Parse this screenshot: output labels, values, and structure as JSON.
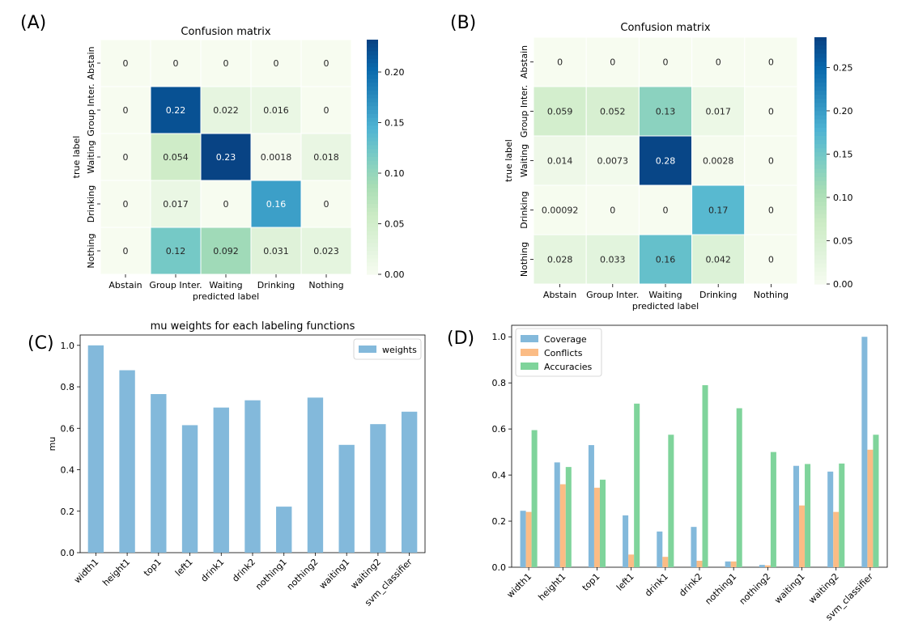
{
  "panels": {
    "A": {
      "label": "(A)"
    },
    "B": {
      "label": "(B)"
    },
    "C": {
      "label": "(C)"
    },
    "D": {
      "label": "(D)"
    }
  },
  "colors": {
    "weights": "#83b9db",
    "coverage": "#83b9db",
    "conflicts": "#fbbc85",
    "accuracies": "#7fd49b",
    "colormap_stops": [
      "#f7fcf0",
      "#e0f3db",
      "#ccebc5",
      "#a8ddb5",
      "#7bccc4",
      "#4eb3d3",
      "#2b8cbe",
      "#0868ac",
      "#084081"
    ]
  },
  "chart_data": [
    {
      "id": "A",
      "type": "heatmap",
      "title": "Confusion matrix",
      "xlabel": "predicted label",
      "ylabel": "true label",
      "x_categories": [
        "Abstain",
        "Group Inter.",
        "Waiting",
        "Drinking",
        "Nothing"
      ],
      "y_categories": [
        "Abstain",
        "Group Inter.",
        "Waiting",
        "Drinking",
        "Nothing"
      ],
      "values": [
        [
          0,
          0,
          0,
          0,
          0
        ],
        [
          0,
          0.22,
          0.022,
          0.016,
          0
        ],
        [
          0,
          0.054,
          0.23,
          0.0018,
          0.018
        ],
        [
          0,
          0.017,
          0,
          0.16,
          0
        ],
        [
          0,
          0.12,
          0.092,
          0.031,
          0.023
        ]
      ],
      "cell_labels": [
        [
          "0",
          "0",
          "0",
          "0",
          "0"
        ],
        [
          "0",
          "0.22",
          "0.022",
          "0.016",
          "0"
        ],
        [
          "0",
          "0.054",
          "0.23",
          "0.0018",
          "0.018"
        ],
        [
          "0",
          "0.017",
          "0",
          "0.16",
          "0"
        ],
        [
          "0",
          "0.12",
          "0.092",
          "0.031",
          "0.023"
        ]
      ],
      "vmin": 0,
      "vmax": 0.232,
      "colorbar_ticks": [
        0.0,
        0.05,
        0.1,
        0.15,
        0.2
      ],
      "colorbar_tick_labels": [
        "0.00",
        "0.05",
        "0.10",
        "0.15",
        "0.20"
      ]
    },
    {
      "id": "B",
      "type": "heatmap",
      "title": "Confusion matrix",
      "xlabel": "predicted label",
      "ylabel": "true label",
      "x_categories": [
        "Abstain",
        "Group Inter.",
        "Waiting",
        "Drinking",
        "Nothing"
      ],
      "y_categories": [
        "Abstain",
        "Group Inter.",
        "Waiting",
        "Drinking",
        "Nothing"
      ],
      "values": [
        [
          0,
          0,
          0,
          0,
          0
        ],
        [
          0.059,
          0.052,
          0.13,
          0.017,
          0
        ],
        [
          0.014,
          0.0073,
          0.28,
          0.0028,
          0
        ],
        [
          0.00092,
          0,
          0,
          0.17,
          0
        ],
        [
          0.028,
          0.033,
          0.16,
          0.042,
          0
        ]
      ],
      "cell_labels": [
        [
          "0",
          "0",
          "0",
          "0",
          "0"
        ],
        [
          "0.059",
          "0.052",
          "0.13",
          "0.017",
          "0"
        ],
        [
          "0.014",
          "0.0073",
          "0.28",
          "0.0028",
          "0"
        ],
        [
          "0.00092",
          "0",
          "0",
          "0.17",
          "0"
        ],
        [
          "0.028",
          "0.033",
          "0.16",
          "0.042",
          "0"
        ]
      ],
      "vmin": 0,
      "vmax": 0.285,
      "colorbar_ticks": [
        0.0,
        0.05,
        0.1,
        0.15,
        0.2,
        0.25
      ],
      "colorbar_tick_labels": [
        "0.00",
        "0.05",
        "0.10",
        "0.15",
        "0.20",
        "0.25"
      ]
    },
    {
      "id": "C",
      "type": "bar",
      "title": "mu weights for each labeling functions",
      "xlabel": "",
      "ylabel": "mu",
      "categories": [
        "width1",
        "height1",
        "top1",
        "left1",
        "drink1",
        "drink2",
        "nothing1",
        "nothing2",
        "waiting1",
        "waiting2",
        "svm_classifier"
      ],
      "series": [
        {
          "name": "weights",
          "values": [
            1.0,
            0.88,
            0.765,
            0.615,
            0.7,
            0.735,
            0.222,
            0.748,
            0.52,
            0.62,
            0.68
          ]
        }
      ],
      "ylim": [
        0,
        1.05
      ],
      "yticks": [
        0.0,
        0.2,
        0.4,
        0.6,
        0.8,
        1.0
      ],
      "ytick_labels": [
        "0.0",
        "0.2",
        "0.4",
        "0.6",
        "0.8",
        "1.0"
      ],
      "legend_position": "top-right",
      "grid": false
    },
    {
      "id": "D",
      "type": "bar",
      "title": "",
      "xlabel": "",
      "ylabel": "",
      "categories": [
        "width1",
        "height1",
        "top1",
        "left1",
        "drink1",
        "drink2",
        "nothing1",
        "nothing2",
        "waiting1",
        "waiting2",
        "svm_classifier"
      ],
      "series": [
        {
          "name": "Coverage",
          "values": [
            0.245,
            0.455,
            0.53,
            0.225,
            0.155,
            0.175,
            0.025,
            0.01,
            0.44,
            0.415,
            1.0
          ]
        },
        {
          "name": "Conflicts",
          "values": [
            0.24,
            0.36,
            0.345,
            0.055,
            0.045,
            0.028,
            0.025,
            0.008,
            0.268,
            0.24,
            0.51
          ]
        },
        {
          "name": "Accuracies",
          "values": [
            0.595,
            0.435,
            0.38,
            0.71,
            0.575,
            0.79,
            0.69,
            0.5,
            0.448,
            0.45,
            0.575
          ]
        }
      ],
      "ylim": [
        0,
        1.05
      ],
      "yticks": [
        0.0,
        0.2,
        0.4,
        0.6,
        0.8,
        1.0
      ],
      "ytick_labels": [
        "0.0",
        "0.2",
        "0.4",
        "0.6",
        "0.8",
        "1.0"
      ],
      "legend_position": "top-left",
      "grid": false
    }
  ]
}
